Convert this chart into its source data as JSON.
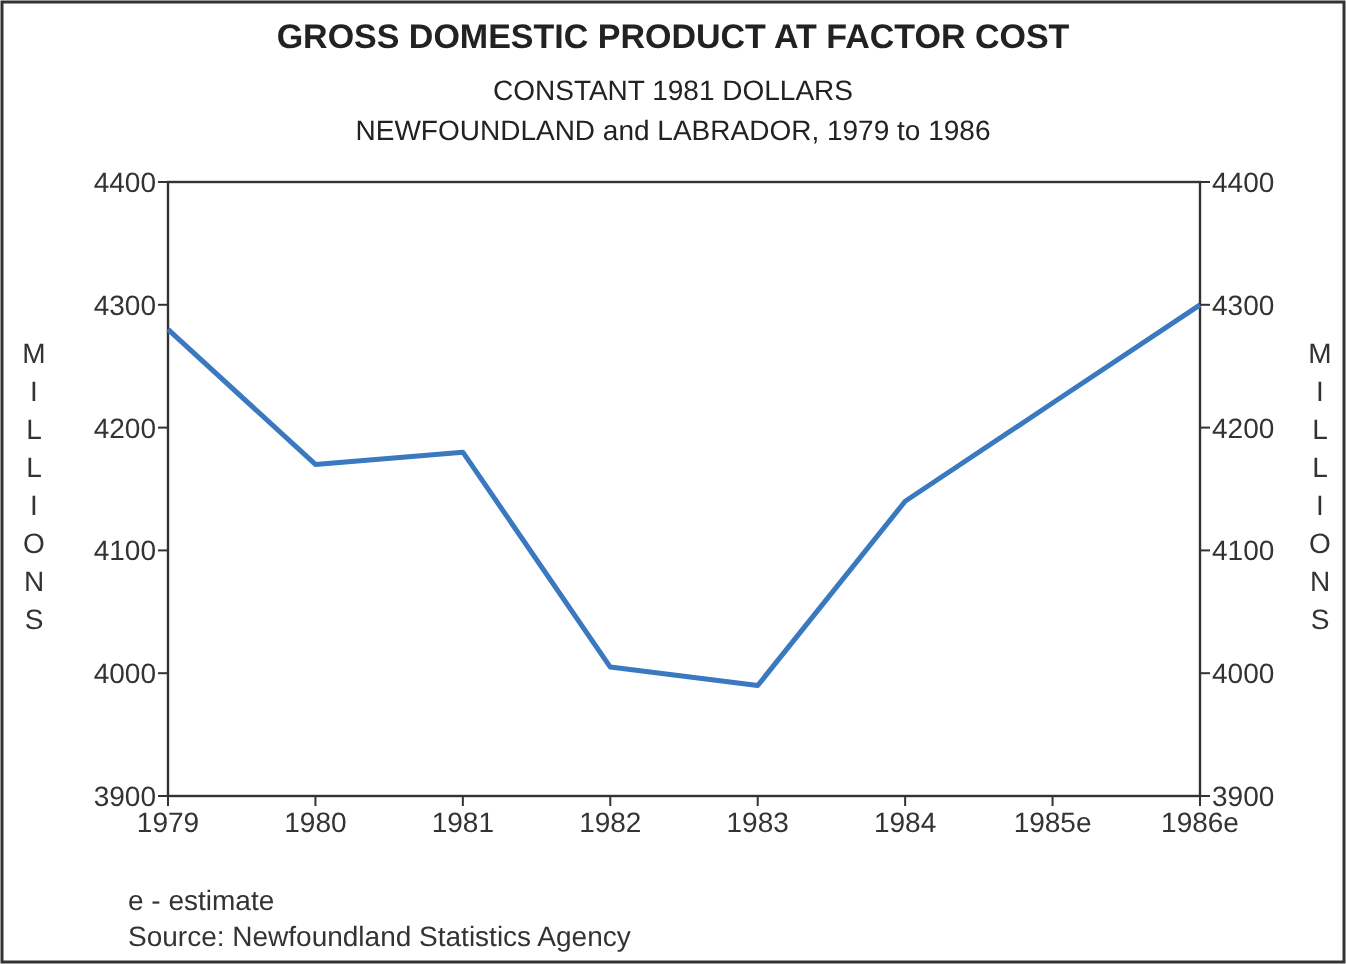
{
  "chart_data": {
    "type": "line",
    "title": "GROSS DOMESTIC PRODUCT AT FACTOR COST",
    "subtitle": "CONSTANT 1981 DOLLARS\nNEWFOUNDLAND and LABRADOR, 1979 to 1986",
    "categories": [
      "1979",
      "1980",
      "1981",
      "1982",
      "1983",
      "1984",
      "1985e",
      "1986e"
    ],
    "series": [
      {
        "color": "#3a78c0",
        "values": [
          4280,
          4170,
          4180,
          4005,
          3990,
          4140,
          4220,
          4300
        ]
      }
    ],
    "ylabel": "MILLIONS",
    "y2label": "MILLIONS",
    "ylim": [
      3900,
      4400
    ],
    "yticks": [
      3900,
      4000,
      4100,
      4200,
      4300,
      4400
    ],
    "y2lim": [
      3900,
      4400
    ],
    "y2ticks": [
      3900,
      4000,
      4100,
      4200,
      4300,
      4400
    ],
    "grid": false,
    "marker": "none",
    "line_style": "solid",
    "annotations": [
      "e - estimate",
      "Source: Newfoundland Statistics Agency"
    ]
  }
}
